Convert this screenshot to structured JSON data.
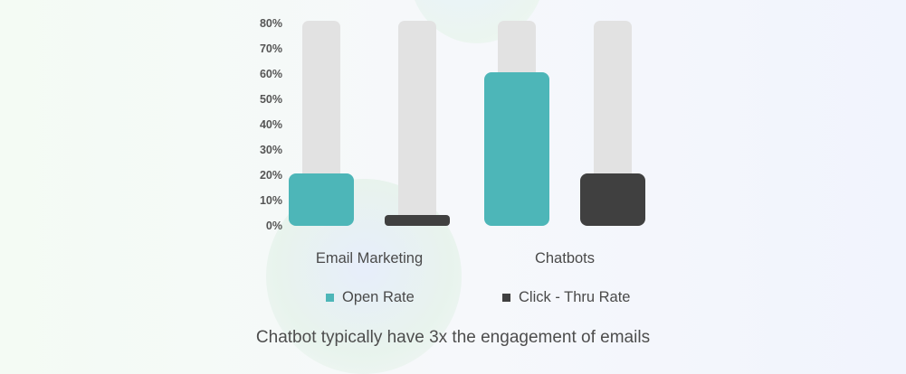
{
  "colors": {
    "open_rate": "#4db6b8",
    "click_thru_rate": "#404040",
    "track": "#e2e2e2"
  },
  "chart_data": {
    "type": "bar",
    "title": "",
    "xlabel": "",
    "ylabel": "",
    "categories": [
      "Email Marketing",
      "Chatbots"
    ],
    "series": [
      {
        "name": "Open Rate",
        "values": [
          20,
          60
        ]
      },
      {
        "name": "Click - Thru Rate",
        "values": [
          2,
          20
        ]
      }
    ],
    "track_max": 80,
    "ylim": [
      0,
      80
    ],
    "yticks": [
      0,
      10,
      20,
      30,
      40,
      50,
      60,
      70,
      80
    ],
    "ytick_labels": [
      "0%",
      "10%",
      "20%",
      "30%",
      "40%",
      "50%",
      "60%",
      "70%",
      "80%"
    ],
    "grid": false,
    "legend": "bottom",
    "caption": "Chatbot typically have 3x the engagement of emails"
  }
}
